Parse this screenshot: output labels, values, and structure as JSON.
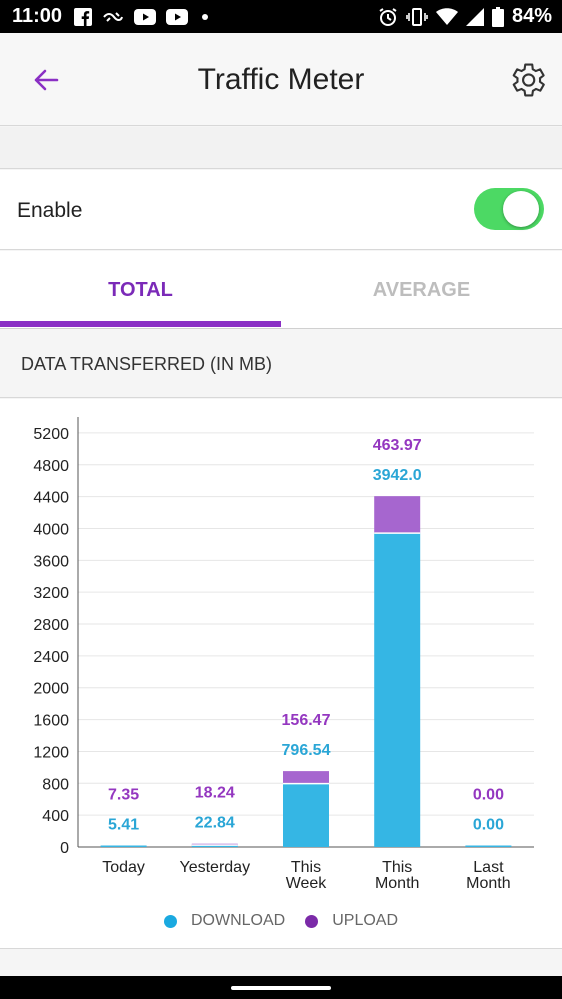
{
  "status_bar": {
    "time": "11:00",
    "battery": "84%",
    "left_icons": [
      "facebook-icon",
      "data-saver-icon",
      "youtube-icon",
      "youtube-icon",
      "dot-icon"
    ],
    "right_icons": [
      "alarm-icon",
      "vibrate-icon",
      "wifi-icon",
      "signal-icon",
      "battery-icon"
    ]
  },
  "header": {
    "title": "Traffic Meter",
    "back_icon": "arrow-left-icon",
    "settings_icon": "gear-icon"
  },
  "enable": {
    "label": "Enable",
    "toggled": true
  },
  "tabs": [
    {
      "label": "TOTAL",
      "active": true
    },
    {
      "label": "AVERAGE",
      "active": false
    }
  ],
  "section": {
    "title": "DATA TRANSFERRED (IN MB)"
  },
  "colors": {
    "accent": "#8a2fc4",
    "download": "#35b6e4",
    "upload": "#9b4fc9",
    "toggle_on": "#4cd964"
  },
  "chart_data": {
    "type": "bar",
    "stacked": true,
    "categories": [
      "Today",
      "Yesterday",
      "This\nWeek",
      "This\nMonth",
      "Last\nMonth"
    ],
    "series": [
      {
        "name": "DOWNLOAD",
        "color": "#35b6e4",
        "values": [
          5.41,
          22.84,
          796.54,
          3942.0,
          0.0
        ],
        "labels": [
          "5.41",
          "22.84",
          "796.54",
          "3942.0",
          "0.00"
        ]
      },
      {
        "name": "UPLOAD",
        "color": "#a666cf",
        "values": [
          7.35,
          18.24,
          156.47,
          463.97,
          0.0
        ],
        "labels": [
          "7.35",
          "18.24",
          "156.47",
          "463.97",
          "0.00"
        ]
      }
    ],
    "yticks": [
      0,
      400,
      800,
      1200,
      1600,
      2000,
      2400,
      2800,
      3200,
      3600,
      4000,
      4400,
      4800,
      5200
    ],
    "ylim": [
      0,
      5400
    ],
    "grid": true,
    "legend_placement": "bottom"
  }
}
